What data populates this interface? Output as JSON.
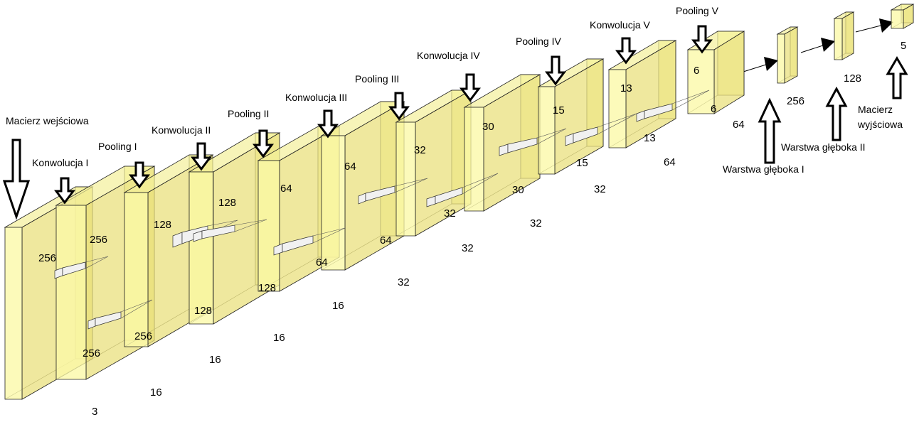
{
  "layer_labels": [
    {
      "id": "input",
      "text": "Macierz wejściowa"
    },
    {
      "id": "conv1",
      "text": "Konwolucja I"
    },
    {
      "id": "pool1",
      "text": "Pooling I"
    },
    {
      "id": "conv2",
      "text": "Konwolucja II"
    },
    {
      "id": "pool2",
      "text": "Pooling II"
    },
    {
      "id": "conv3",
      "text": "Konwolucja III"
    },
    {
      "id": "pool3",
      "text": "Pooling III"
    },
    {
      "id": "conv4",
      "text": "Konwolucja IV"
    },
    {
      "id": "pool4",
      "text": "Pooling IV"
    },
    {
      "id": "conv5",
      "text": "Konwolucja V"
    },
    {
      "id": "pool5",
      "text": "Pooling V"
    },
    {
      "id": "dense1",
      "text": "Warstwa głęboka I"
    },
    {
      "id": "dense2",
      "text": "Warstwa głęboka II"
    },
    {
      "id": "output_line1",
      "text": "Macierz"
    },
    {
      "id": "output_line2",
      "text": "wyjściowa"
    }
  ],
  "dimension_labels": [
    {
      "id": "input-height",
      "text": "256"
    },
    {
      "id": "input-width",
      "text": "256"
    },
    {
      "id": "input-depth",
      "text": "3"
    },
    {
      "id": "conv1-height",
      "text": "256"
    },
    {
      "id": "conv1-width",
      "text": "256"
    },
    {
      "id": "conv1-depth",
      "text": "16"
    },
    {
      "id": "pool1-height",
      "text": "128"
    },
    {
      "id": "pool1-width",
      "text": "128"
    },
    {
      "id": "pool1-depth",
      "text": "16"
    },
    {
      "id": "conv2-height",
      "text": "128"
    },
    {
      "id": "conv2-width",
      "text": "128"
    },
    {
      "id": "conv2-depth",
      "text": "16"
    },
    {
      "id": "pool2-height",
      "text": "64"
    },
    {
      "id": "pool2-width",
      "text": "64"
    },
    {
      "id": "pool2-depth",
      "text": "16"
    },
    {
      "id": "conv3-height",
      "text": "64"
    },
    {
      "id": "conv3-width",
      "text": "64"
    },
    {
      "id": "conv3-depth",
      "text": "32"
    },
    {
      "id": "pool3-height",
      "text": "32"
    },
    {
      "id": "pool3-width",
      "text": "32"
    },
    {
      "id": "pool3-depth",
      "text": "32"
    },
    {
      "id": "conv4-height",
      "text": "30"
    },
    {
      "id": "conv4-width",
      "text": "30"
    },
    {
      "id": "conv4-depth",
      "text": "32"
    },
    {
      "id": "pool4-height",
      "text": "15"
    },
    {
      "id": "pool4-width",
      "text": "15"
    },
    {
      "id": "pool4-depth",
      "text": "32"
    },
    {
      "id": "conv5-height",
      "text": "13"
    },
    {
      "id": "conv5-width",
      "text": "13"
    },
    {
      "id": "conv5-depth",
      "text": "64"
    },
    {
      "id": "pool5-height",
      "text": "6"
    },
    {
      "id": "pool5-width",
      "text": "6"
    },
    {
      "id": "pool5-depth",
      "text": "64"
    },
    {
      "id": "dense1-size",
      "text": "256"
    },
    {
      "id": "dense2-size",
      "text": "128"
    },
    {
      "id": "output-size",
      "text": "5"
    }
  ]
}
